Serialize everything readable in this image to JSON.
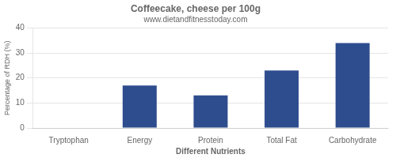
{
  "chart_data": {
    "type": "bar",
    "title": "Coffeecake, cheese per 100g",
    "subtitle": "www.dietandfitnesstoday.com",
    "xlabel": "Different Nutrients",
    "ylabel": "Percentage of RDH (%)",
    "categories": [
      "Tryptophan",
      "Energy",
      "Protein",
      "Total Fat",
      "Carbohydrate"
    ],
    "values": [
      0,
      17,
      13,
      23,
      34
    ],
    "color": "#2e4d8e",
    "ylim": [
      0,
      40
    ],
    "yticks": [
      0,
      10,
      20,
      30,
      40
    ],
    "grid": true
  }
}
